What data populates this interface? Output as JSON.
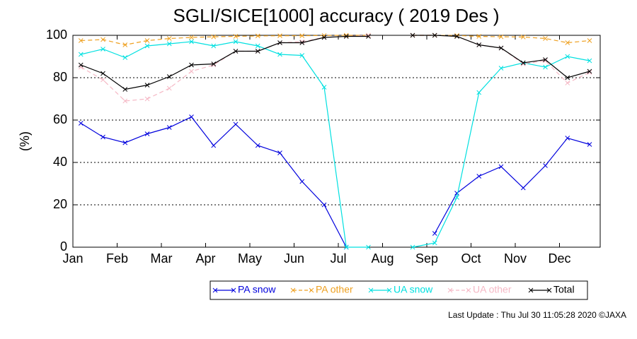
{
  "chart_data": {
    "type": "line",
    "title": "SGLI/SICE[1000] accuracy ( 2019 Des )",
    "y_label": "(%)",
    "footer": "Last Update : Thu Jul 30 11:05:28 2020 ©JAXA",
    "x": [
      0.18,
      0.68,
      1.18,
      1.68,
      2.18,
      2.68,
      3.18,
      3.68,
      4.18,
      4.68,
      5.18,
      5.68,
      6.18,
      6.68,
      7.18,
      7.68,
      8.18,
      8.68,
      9.18,
      9.68,
      10.18,
      10.68,
      11.18,
      11.68
    ],
    "xlim": [
      0,
      11.92
    ],
    "xticks": [
      {
        "value": 0,
        "label": "Jan"
      },
      {
        "value": 1,
        "label": "Feb"
      },
      {
        "value": 2,
        "label": "Mar"
      },
      {
        "value": 3,
        "label": "Apr"
      },
      {
        "value": 4,
        "label": "May"
      },
      {
        "value": 5,
        "label": "Jun"
      },
      {
        "value": 6,
        "label": "Jul"
      },
      {
        "value": 7,
        "label": "Aug"
      },
      {
        "value": 8,
        "label": "Sep"
      },
      {
        "value": 9,
        "label": "Oct"
      },
      {
        "value": 10,
        "label": "Nov"
      },
      {
        "value": 11,
        "label": "Dec"
      }
    ],
    "ylim": [
      0,
      100
    ],
    "yticks": [
      0,
      20,
      40,
      60,
      80,
      100
    ],
    "grid": true,
    "series": [
      {
        "name": "PA snow",
        "color": "#0000dd",
        "dashed": false,
        "values": [
          58.5,
          52,
          49.3,
          53.5,
          56.5,
          61.5,
          48,
          58,
          48,
          44.5,
          31,
          20,
          0,
          null,
          null,
          null,
          6.5,
          25.5,
          33.5,
          38,
          28,
          38.5,
          51.5,
          48.5
        ]
      },
      {
        "name": "PA other",
        "color": "#eea020",
        "dashed": true,
        "values": [
          97.5,
          98,
          95.5,
          97.5,
          98.5,
          99,
          99.3,
          99.5,
          99.7,
          99.8,
          99.8,
          99.9,
          100,
          100,
          null,
          100,
          100,
          99.9,
          99.5,
          99.3,
          99.2,
          98.5,
          96.5,
          97.5
        ]
      },
      {
        "name": "UA snow",
        "color": "#00e0e0",
        "dashed": false,
        "values": [
          91,
          93.5,
          89.5,
          95,
          96,
          97,
          95,
          97,
          95,
          91,
          90.5,
          75.5,
          0,
          0,
          null,
          0,
          2,
          23.5,
          73,
          84.5,
          87,
          85,
          90,
          88
        ]
      },
      {
        "name": "UA other",
        "color": "#f5b8c5",
        "dashed": true,
        "values": [
          85,
          79,
          69,
          70,
          75,
          83,
          86,
          92.5,
          92.5,
          96.5,
          97,
          99,
          99.5,
          100,
          null,
          100,
          100,
          99.5,
          95.5,
          94,
          86.5,
          88,
          77.5,
          82.5
        ]
      },
      {
        "name": "Total",
        "color": "#000000",
        "dashed": false,
        "values": [
          86,
          82,
          74.5,
          76.5,
          80.5,
          86,
          86.5,
          92.5,
          92.5,
          96.5,
          96.5,
          99,
          99.5,
          99.5,
          null,
          100,
          100,
          99.5,
          95.5,
          94,
          87,
          88.5,
          80,
          83
        ]
      }
    ]
  }
}
